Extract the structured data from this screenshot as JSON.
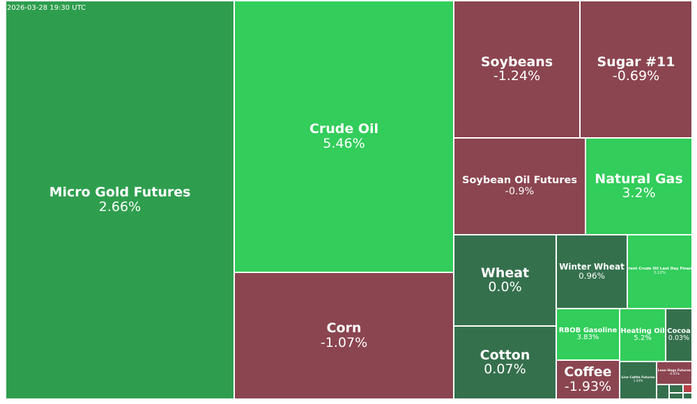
{
  "timestamp": "2026-03-28 19:30 UTC",
  "colors": {
    "up_strong": "#32cd5a",
    "up_mid": "#2e9e4e",
    "flat": "#35704d",
    "down": "#8b4550"
  },
  "chart_data": {
    "type": "treemap",
    "title": "",
    "items": [
      {
        "name": "Micro Gold Futures",
        "change": "2.66%",
        "value": 2.66
      },
      {
        "name": "Crude Oil",
        "change": "5.46%",
        "value": 5.46
      },
      {
        "name": "Corn",
        "change": "-1.07%",
        "value": -1.07
      },
      {
        "name": "Soybeans",
        "change": "-1.24%",
        "value": -1.24
      },
      {
        "name": "Sugar #11",
        "change": "-0.69%",
        "value": -0.69
      },
      {
        "name": "Soybean Oil Futures",
        "change": "-0.9%",
        "value": -0.9
      },
      {
        "name": "Natural Gas",
        "change": "3.2%",
        "value": 3.2
      },
      {
        "name": "Wheat",
        "change": "0.0%",
        "value": 0.0
      },
      {
        "name": "Winter Wheat",
        "change": "0.96%",
        "value": 0.96
      },
      {
        "name": "Brent Crude Oil Last Day Financ",
        "change": "5.12%",
        "value": 5.12
      },
      {
        "name": "RBOB Gasoline",
        "change": "3.83%",
        "value": 3.83
      },
      {
        "name": "Heating Oil",
        "change": "5.2%",
        "value": 5.2
      },
      {
        "name": "Cocoa",
        "change": "0.03%",
        "value": 0.03
      },
      {
        "name": "Cotton",
        "change": "0.07%",
        "value": 0.07
      },
      {
        "name": "Coffee",
        "change": "-1.93%",
        "value": -1.93
      },
      {
        "name": "Live Cattle Futures",
        "change": "1.44%",
        "value": 1.44
      },
      {
        "name": "Lean Hogs Futures",
        "change": "-0.05%",
        "value": -0.05
      }
    ]
  }
}
